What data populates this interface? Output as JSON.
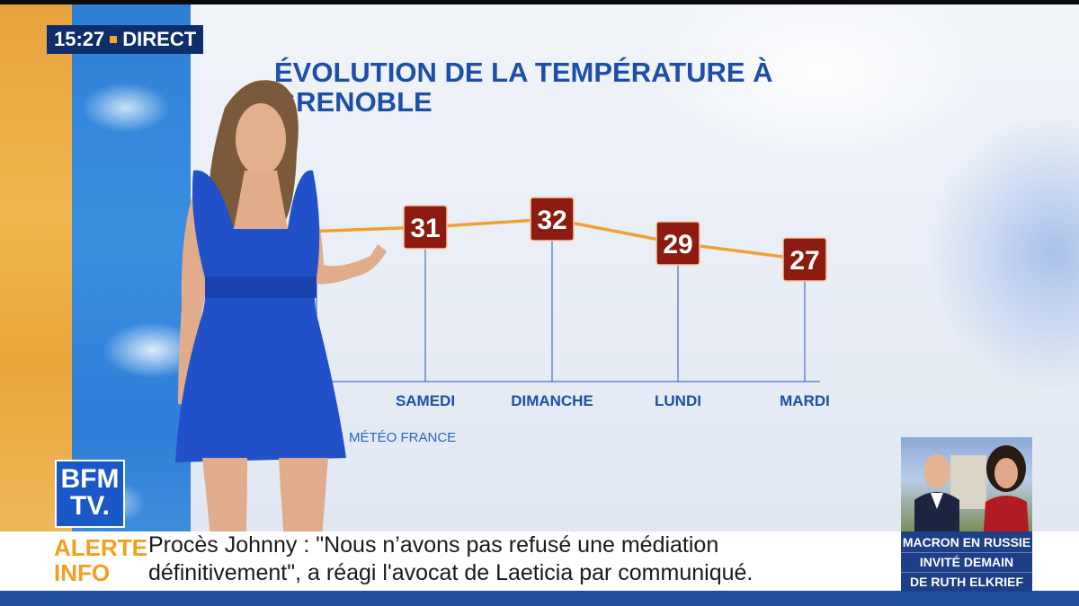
{
  "header": {
    "time": "15:27",
    "live_label": "DIRECT"
  },
  "graphic": {
    "title_line1": "ÉVOLUTION DE LA TEMPÉRATURE À",
    "title_line2": "GRENOBLE",
    "source": "MÉTÉO FRANCE"
  },
  "chart_data": {
    "type": "line",
    "title": "ÉVOLUTION DE LA TEMPÉRATURE À GRENOBLE",
    "categories": [
      "",
      "SAMEDI",
      "DIMANCHE",
      "LUNDI",
      "MARDI"
    ],
    "values": [
      null,
      31,
      32,
      29,
      27
    ],
    "xlabel": "",
    "ylabel": "",
    "grid": false,
    "colors": {
      "line": "#f0a030",
      "marker": "#8e1b12",
      "axis": "#4a6fc2",
      "label": "#1d4fa8"
    }
  },
  "logo": {
    "line1": "BFM",
    "line2": "TV."
  },
  "alert": {
    "label_line1": "ALERTE",
    "label_line2": "INFO",
    "text_line1": "Procès Johnny : \"Nous n’avons pas refusé une médiation",
    "text_line2": "définitivement\", a réagi l'avocat de Laeticia par communiqué."
  },
  "promo": {
    "line1": "MACRON EN RUSSIE",
    "line2": "INVITÉ DEMAIN",
    "line3": "DE RUTH ELKRIEF"
  },
  "colors": {
    "brand_blue": "#1a58c8",
    "alert_orange": "#f39f1e",
    "title_blue": "#1d4fa8"
  }
}
